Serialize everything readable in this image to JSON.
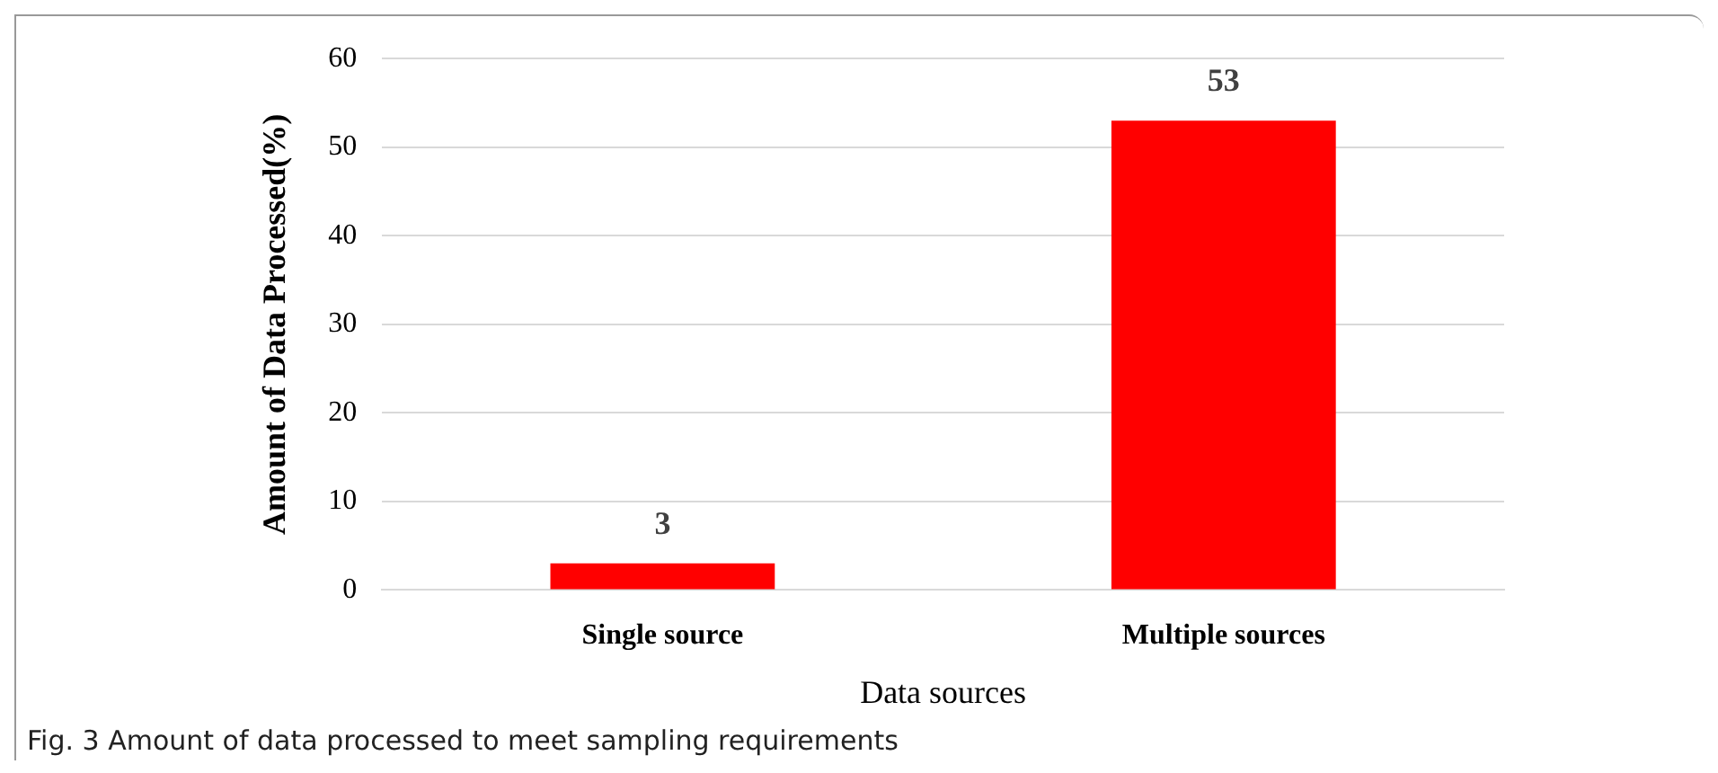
{
  "chart_data": {
    "type": "bar",
    "xlabel": "Data sources",
    "ylabel": "Amount of Data Processed(%)",
    "categories": [
      "Single source",
      "Multiple sources"
    ],
    "values": [
      3,
      53
    ],
    "color": "#ff0000",
    "ylim": [
      0,
      60
    ],
    "yticks": [
      0,
      10,
      20,
      30,
      40,
      50,
      60
    ],
    "grid": "y",
    "data_labels": true,
    "annotations": [
      "Fig. 3  Amount of data processed to meet sampling requirements"
    ]
  }
}
